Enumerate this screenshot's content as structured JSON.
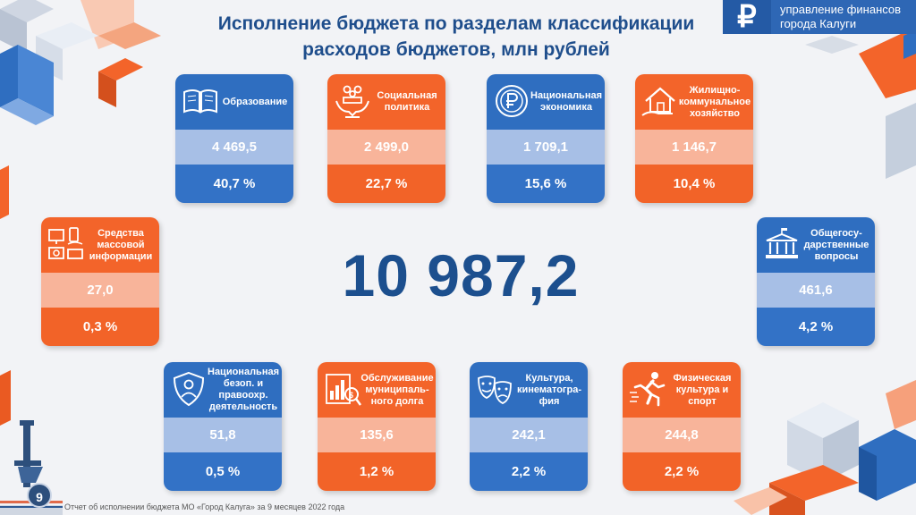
{
  "title": {
    "line1": "Исполнение бюджета по разделам классификации",
    "line2": "расходов бюджетов, млн рублей"
  },
  "organization": {
    "logo_symbol": "₽",
    "line1": "управление финансов",
    "line2": "города Калуги"
  },
  "total": "10 987,2",
  "cards": {
    "education": {
      "label": "Образование",
      "amount": "4 469,5",
      "share": "40,7 %",
      "icon": "book-icon",
      "color": "blue"
    },
    "social": {
      "label": "Социальная политика",
      "amount": "2 499,0",
      "share": "22,7 %",
      "icon": "hands-people-icon",
      "color": "orange"
    },
    "economy": {
      "label": "Национальная экономика",
      "amount": "1 709,1",
      "share": "15,6 %",
      "icon": "ruble-coin-icon",
      "color": "blue"
    },
    "housing": {
      "label": "Жилищно-коммунальное хозяйство",
      "amount": "1 146,7",
      "share": "10,4 %",
      "icon": "house-hand-icon",
      "color": "orange"
    },
    "media": {
      "label": "Средства массовой информации",
      "amount": "27,0",
      "share": "0,3 %",
      "icon": "media-devices-icon",
      "color": "orange"
    },
    "government": {
      "label": "Общегосу-дарственные вопросы",
      "amount": "461,6",
      "share": "4,2 %",
      "icon": "government-building-icon",
      "color": "blue"
    },
    "security": {
      "label": "Национальная безоп. и правоохр. деятельность",
      "amount": "51,8",
      "share": "0,5 %",
      "icon": "shield-person-icon",
      "color": "blue"
    },
    "debt": {
      "label": "Обслуживание муниципаль-ного долга",
      "amount": "135,6",
      "share": "1,2 %",
      "icon": "debt-chart-icon",
      "color": "orange"
    },
    "culture": {
      "label": "Культура, кинематогра-фия",
      "amount": "242,1",
      "share": "2,2 %",
      "icon": "theater-masks-icon",
      "color": "blue"
    },
    "sport": {
      "label": "Физическая культура и спорт",
      "amount": "244,8",
      "share": "2,2 %",
      "icon": "runner-icon",
      "color": "orange"
    }
  },
  "page_number": "9",
  "footer": "Отчет об исполнении бюджета МО «Город Калуга» за 9 месяцев 2022 года"
}
